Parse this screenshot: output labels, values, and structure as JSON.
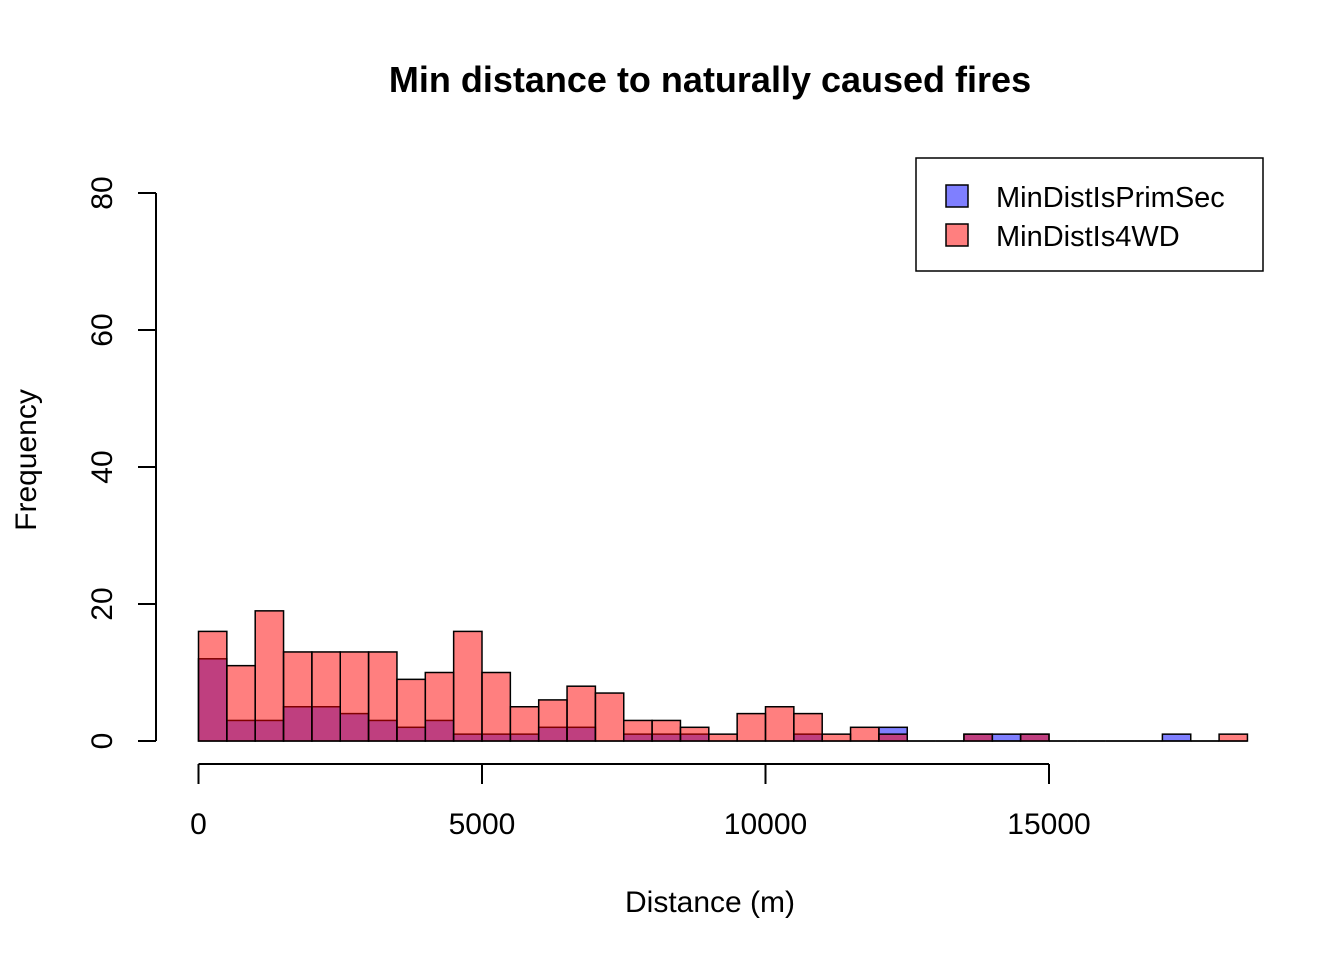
{
  "chart_data": {
    "type": "bar",
    "subtype": "histogram",
    "title": "Min distance to naturally caused fires",
    "xlabel": "Distance (m)",
    "ylabel": "Frequency",
    "xlim": [
      0,
      18500
    ],
    "ylim": [
      0,
      80
    ],
    "bin_width": 500,
    "x_ticks": [
      "0",
      "5000",
      "10000",
      "15000"
    ],
    "y_ticks": [
      "0",
      "20",
      "40",
      "60",
      "80"
    ],
    "grid": false,
    "legend_position": "top-right",
    "series": [
      {
        "name": "MinDistIsPrimSec",
        "color": "#0000FF",
        "opacity": 0.5,
        "bin_starts": [
          0,
          500,
          1000,
          1500,
          2000,
          2500,
          3000,
          3500,
          4000,
          4500,
          5000,
          5500,
          6000,
          6500,
          7000,
          7500,
          8000,
          8500,
          9000,
          9500,
          10000,
          10500,
          11000,
          11500,
          12000,
          12500,
          13000,
          13500,
          14000,
          14500,
          15000,
          15500,
          16000,
          16500,
          17000,
          17500,
          18000
        ],
        "values": [
          12,
          3,
          3,
          5,
          5,
          4,
          3,
          2,
          3,
          1,
          1,
          1,
          2,
          2,
          0,
          1,
          1,
          1,
          0,
          0,
          0,
          1,
          0,
          0,
          2,
          0,
          0,
          1,
          1,
          1,
          0,
          0,
          0,
          0,
          1,
          0,
          0
        ]
      },
      {
        "name": "MinDistIs4WD",
        "color": "#FF0000",
        "opacity": 0.5,
        "bin_starts": [
          0,
          500,
          1000,
          1500,
          2000,
          2500,
          3000,
          3500,
          4000,
          4500,
          5000,
          5500,
          6000,
          6500,
          7000,
          7500,
          8000,
          8500,
          9000,
          9500,
          10000,
          10500,
          11000,
          11500,
          12000,
          12500,
          13000,
          13500,
          14000,
          14500,
          15000,
          15500,
          16000,
          16500,
          17000,
          17500,
          18000
        ],
        "values": [
          16,
          11,
          19,
          13,
          13,
          13,
          13,
          9,
          10,
          16,
          10,
          5,
          6,
          8,
          7,
          3,
          3,
          2,
          1,
          4,
          5,
          4,
          1,
          2,
          1,
          0,
          0,
          1,
          0,
          1,
          0,
          0,
          0,
          0,
          0,
          0,
          1
        ]
      }
    ]
  }
}
